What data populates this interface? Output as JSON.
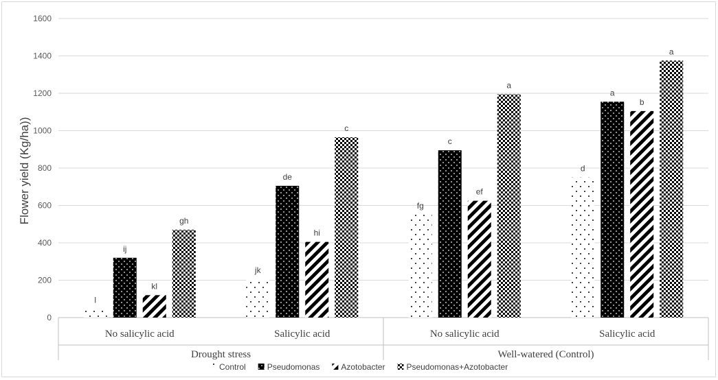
{
  "chart_data": {
    "type": "bar",
    "title": "",
    "ylabel": "Flower yield (Kg/ha))",
    "xlabel": "",
    "ylim": [
      0,
      1600
    ],
    "yticks": [
      "0",
      "200",
      "400",
      "600",
      "800",
      "1000",
      "1200",
      "1400",
      "1600"
    ],
    "grid": true,
    "legend_position": "bottom",
    "groups": [
      {
        "label": "Drought stress",
        "subcategories": [
          "No salicylic  acid",
          "Salicylic  acid"
        ]
      },
      {
        "label": "Well-watered (Control)",
        "subcategories": [
          "No salicylic  acid",
          "Salicylic  acid"
        ]
      }
    ],
    "categories": [
      "No salicylic  acid",
      "Salicylic  acid",
      "No salicylic  acid",
      "Salicylic  acid"
    ],
    "series": [
      {
        "name": "Control",
        "pattern": "sparse-dots",
        "values": [
          45,
          205,
          550,
          750
        ],
        "labels": [
          "l",
          "jk",
          "fg",
          "d"
        ]
      },
      {
        "name": "Pseudomonas",
        "pattern": "dark-dots",
        "values": [
          320,
          705,
          895,
          1155
        ],
        "labels": [
          "ij",
          "de",
          "c",
          "a"
        ]
      },
      {
        "name": "Azotobacter",
        "pattern": "diagonal-stripes",
        "values": [
          120,
          405,
          625,
          1105
        ],
        "labels": [
          "kl",
          "hi",
          "ef",
          "b"
        ]
      },
      {
        "name": "Pseudomonas+Azotobacter",
        "pattern": "checker",
        "values": [
          470,
          965,
          1195,
          1375
        ],
        "labels": [
          "gh",
          "c",
          "a",
          "a"
        ]
      }
    ]
  }
}
